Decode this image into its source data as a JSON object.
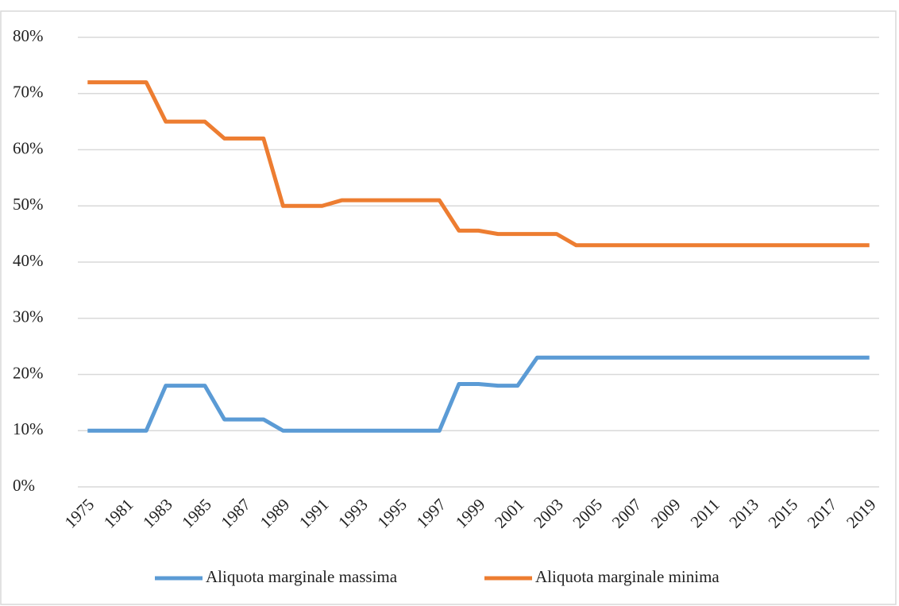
{
  "chart_data": {
    "type": "line",
    "categories": [
      "1975",
      null,
      "1981",
      null,
      "1983",
      null,
      "1985",
      null,
      "1987",
      null,
      "1989",
      null,
      "1991",
      null,
      "1993",
      null,
      "1995",
      null,
      "1997",
      null,
      "1999",
      null,
      "2001",
      null,
      "2003",
      null,
      "2005",
      null,
      "2007",
      null,
      "2009",
      null,
      "2011",
      null,
      "2013",
      null,
      "2015",
      null,
      "2017",
      null,
      "2019"
    ],
    "series": [
      {
        "name": "Aliquota marginale massima",
        "color": "#5b9bd5",
        "values": [
          10,
          10,
          10,
          10,
          18,
          18,
          18,
          12,
          12,
          12,
          10,
          10,
          10,
          10,
          10,
          10,
          10,
          10,
          10,
          18.3,
          18.3,
          18,
          18,
          23,
          23,
          23,
          23,
          23,
          23,
          23,
          23,
          23,
          23,
          23,
          23,
          23,
          23,
          23,
          23,
          23,
          23
        ]
      },
      {
        "name": "Aliquota marginale minima",
        "color": "#ed7d31",
        "values": [
          72,
          72,
          72,
          72,
          65,
          65,
          65,
          62,
          62,
          62,
          50,
          50,
          50,
          51,
          51,
          51,
          51,
          51,
          51,
          45.6,
          45.6,
          45,
          45,
          45,
          45,
          43,
          43,
          43,
          43,
          43,
          43,
          43,
          43,
          43,
          43,
          43,
          43,
          43,
          43,
          43,
          43
        ]
      }
    ],
    "ylim": [
      0,
      80
    ],
    "yticks": [
      {
        "value": 0,
        "label": "0%"
      },
      {
        "value": 10,
        "label": "10%"
      },
      {
        "value": 20,
        "label": "20%"
      },
      {
        "value": 30,
        "label": "30%"
      },
      {
        "value": 40,
        "label": "40%"
      },
      {
        "value": 50,
        "label": "50%"
      },
      {
        "value": 60,
        "label": "60%"
      },
      {
        "value": 70,
        "label": "70%"
      },
      {
        "value": 80,
        "label": "80%"
      }
    ],
    "grid": true,
    "legend": "bottom"
  }
}
